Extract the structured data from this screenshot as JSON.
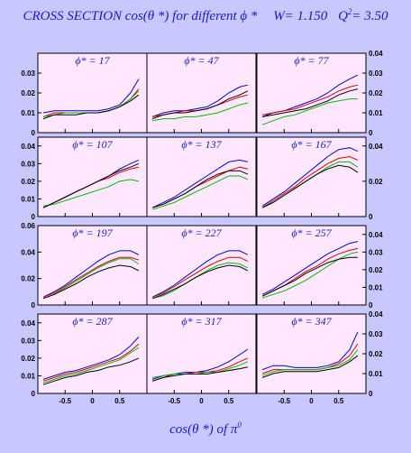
{
  "header": {
    "title": "CROSS SECTION  cos(θ *)   for different  ϕ *",
    "w_text": "W= 1.150",
    "q2_prefix": "Q",
    "q2_sup": "2",
    "q2_value": "= 3.50"
  },
  "colors": {
    "background": "#c8c8ff",
    "panel": "#ffe8ff",
    "text": "#1a1acc",
    "series": [
      "#0000dd",
      "#dd0000",
      "#00bb00",
      "#000000"
    ]
  },
  "chart_data": {
    "type": "line",
    "xlabel_main": "cos(θ *)  of  π",
    "xlabel_sup": "0",
    "layout": "4x3 grid",
    "xlim": [
      -1,
      1
    ],
    "xticks": [
      -0.5,
      0,
      0.5
    ],
    "xtick_labels": [
      "-0.5",
      "0",
      "0.5"
    ],
    "x": [
      -0.9,
      -0.7,
      -0.5,
      -0.3,
      -0.1,
      0.1,
      0.3,
      0.5,
      0.7,
      0.85
    ],
    "panels": [
      {
        "label": "ϕ* = 17",
        "ylim": [
          0,
          0.04
        ],
        "yticks": [
          0,
          0.01,
          0.02,
          0.03
        ],
        "ytick_labels": [
          "0",
          "0.01",
          "0.02",
          "0.03"
        ],
        "yaxis": "left",
        "series": [
          {
            "values": [
              0.01,
              0.011,
              0.011,
              0.011,
              0.011,
              0.011,
              0.012,
              0.014,
              0.02,
              0.027
            ]
          },
          {
            "values": [
              0.008,
              0.01,
              0.01,
              0.01,
              0.01,
              0.01,
              0.011,
              0.013,
              0.017,
              0.022
            ]
          },
          {
            "values": [
              0.008,
              0.009,
              0.01,
              0.01,
              0.01,
              0.01,
              0.011,
              0.013,
              0.017,
              0.021
            ]
          },
          {
            "values": [
              0.007,
              0.009,
              0.009,
              0.009,
              0.01,
              0.01,
              0.011,
              0.013,
              0.016,
              0.019
            ]
          }
        ]
      },
      {
        "label": "ϕ* = 47",
        "ylim": [
          0,
          0.04
        ],
        "yticks": [],
        "ytick_labels": [],
        "yaxis": "none",
        "series": [
          {
            "values": [
              0.008,
              0.01,
              0.011,
              0.011,
              0.012,
              0.013,
              0.016,
              0.02,
              0.023,
              0.024
            ]
          },
          {
            "values": [
              0.008,
              0.009,
              0.01,
              0.011,
              0.011,
              0.012,
              0.014,
              0.016,
              0.018,
              0.019
            ]
          },
          {
            "values": [
              0.006,
              0.007,
              0.007,
              0.008,
              0.008,
              0.009,
              0.01,
              0.012,
              0.014,
              0.015
            ]
          },
          {
            "values": [
              0.007,
              0.009,
              0.01,
              0.01,
              0.011,
              0.012,
              0.014,
              0.017,
              0.019,
              0.021
            ]
          }
        ]
      },
      {
        "label": "ϕ* = 77",
        "ylim": [
          0,
          0.04
        ],
        "yticks": [
          0,
          0.01,
          0.02,
          0.03,
          0.04
        ],
        "ytick_labels": [
          "0",
          "0.01",
          "0.02",
          "0.03",
          "0.04"
        ],
        "yaxis": "right",
        "series": [
          {
            "values": [
              0.008,
              0.01,
              0.011,
              0.013,
              0.015,
              0.017,
              0.02,
              0.024,
              0.027,
              0.029
            ]
          },
          {
            "values": [
              0.009,
              0.01,
              0.011,
              0.012,
              0.014,
              0.016,
              0.018,
              0.021,
              0.023,
              0.024
            ]
          },
          {
            "values": [
              0.004,
              0.006,
              0.008,
              0.009,
              0.011,
              0.013,
              0.015,
              0.016,
              0.017,
              0.017
            ]
          },
          {
            "values": [
              0.008,
              0.009,
              0.01,
              0.011,
              0.012,
              0.014,
              0.016,
              0.019,
              0.021,
              0.022
            ]
          }
        ]
      },
      {
        "label": "ϕ* = 107",
        "ylim": [
          0,
          0.045
        ],
        "yticks": [
          0,
          0.01,
          0.02,
          0.03,
          0.04
        ],
        "ytick_labels": [
          "0",
          "0.01",
          "0.02",
          "0.03",
          "0.04"
        ],
        "yaxis": "left",
        "series": [
          {
            "values": [
              0.005,
              0.008,
              0.011,
              0.014,
              0.017,
              0.02,
              0.023,
              0.027,
              0.03,
              0.032
            ]
          },
          {
            "values": [
              0.005,
              0.008,
              0.011,
              0.014,
              0.017,
              0.02,
              0.022,
              0.025,
              0.027,
              0.028
            ]
          },
          {
            "values": [
              0.006,
              0.007,
              0.009,
              0.011,
              0.013,
              0.015,
              0.017,
              0.02,
              0.021,
              0.02
            ]
          },
          {
            "values": [
              0.005,
              0.008,
              0.011,
              0.014,
              0.017,
              0.02,
              0.023,
              0.026,
              0.028,
              0.03
            ]
          }
        ]
      },
      {
        "label": "ϕ* = 137",
        "ylim": [
          0,
          0.045
        ],
        "yticks": [],
        "ytick_labels": [],
        "yaxis": "none",
        "series": [
          {
            "values": [
              0.005,
              0.008,
              0.011,
              0.015,
              0.019,
              0.023,
              0.027,
              0.031,
              0.032,
              0.031
            ]
          },
          {
            "values": [
              0.005,
              0.007,
              0.01,
              0.013,
              0.017,
              0.02,
              0.023,
              0.026,
              0.028,
              0.027
            ]
          },
          {
            "values": [
              0.004,
              0.006,
              0.008,
              0.011,
              0.014,
              0.017,
              0.02,
              0.023,
              0.023,
              0.021
            ]
          },
          {
            "values": [
              0.005,
              0.007,
              0.01,
              0.013,
              0.017,
              0.021,
              0.024,
              0.026,
              0.026,
              0.024
            ]
          }
        ]
      },
      {
        "label": "ϕ* = 167",
        "ylim": [
          0,
          0.045
        ],
        "yticks": [
          0,
          0.02,
          0.04
        ],
        "ytick_labels": [
          "0",
          "0.02",
          "0.04"
        ],
        "yaxis": "right",
        "series": [
          {
            "values": [
              0.006,
              0.01,
              0.014,
              0.019,
              0.024,
              0.029,
              0.034,
              0.038,
              0.039,
              0.037
            ]
          },
          {
            "values": [
              0.005,
              0.009,
              0.013,
              0.017,
              0.022,
              0.026,
              0.03,
              0.033,
              0.034,
              0.032
            ]
          },
          {
            "values": [
              0.005,
              0.008,
              0.012,
              0.016,
              0.02,
              0.024,
              0.028,
              0.031,
              0.031,
              0.028
            ]
          },
          {
            "values": [
              0.005,
              0.008,
              0.012,
              0.016,
              0.02,
              0.024,
              0.027,
              0.029,
              0.028,
              0.025
            ]
          }
        ]
      },
      {
        "label": "ϕ* = 197",
        "ylim": [
          0,
          0.06
        ],
        "yticks": [
          0,
          0.02,
          0.04,
          0.06
        ],
        "ytick_labels": [
          "0",
          "0.02",
          "0.04",
          "0.06"
        ],
        "yaxis": "left",
        "series": [
          {
            "values": [
              0.006,
              0.01,
              0.015,
              0.021,
              0.027,
              0.033,
              0.038,
              0.041,
              0.041,
              0.038
            ]
          },
          {
            "values": [
              0.006,
              0.009,
              0.014,
              0.019,
              0.024,
              0.029,
              0.033,
              0.036,
              0.036,
              0.034
            ]
          },
          {
            "values": [
              0.005,
              0.008,
              0.013,
              0.018,
              0.023,
              0.028,
              0.032,
              0.035,
              0.035,
              0.031
            ]
          },
          {
            "values": [
              0.005,
              0.008,
              0.012,
              0.016,
              0.021,
              0.025,
              0.028,
              0.03,
              0.029,
              0.026
            ]
          }
        ]
      },
      {
        "label": "ϕ* = 227",
        "ylim": [
          0,
          0.06
        ],
        "yticks": [],
        "ytick_labels": [],
        "yaxis": "none",
        "series": [
          {
            "values": [
              0.006,
              0.01,
              0.015,
              0.021,
              0.027,
              0.033,
              0.038,
              0.041,
              0.041,
              0.038
            ]
          },
          {
            "values": [
              0.006,
              0.009,
              0.014,
              0.019,
              0.024,
              0.029,
              0.033,
              0.036,
              0.036,
              0.033
            ]
          },
          {
            "values": [
              0.005,
              0.007,
              0.011,
              0.016,
              0.021,
              0.026,
              0.03,
              0.032,
              0.031,
              0.028
            ]
          },
          {
            "values": [
              0.005,
              0.008,
              0.012,
              0.016,
              0.021,
              0.025,
              0.028,
              0.03,
              0.029,
              0.026
            ]
          }
        ]
      },
      {
        "label": "ϕ* = 257",
        "ylim": [
          0,
          0.045
        ],
        "yticks": [
          0,
          0.01,
          0.02,
          0.03,
          0.04
        ],
        "ytick_labels": [
          "0",
          "0.01",
          "0.02",
          "0.03",
          "0.04"
        ],
        "yaxis": "right",
        "series": [
          {
            "values": [
              0.006,
              0.009,
              0.013,
              0.017,
              0.021,
              0.025,
              0.029,
              0.032,
              0.035,
              0.036
            ]
          },
          {
            "values": [
              0.005,
              0.008,
              0.011,
              0.015,
              0.019,
              0.022,
              0.026,
              0.029,
              0.031,
              0.032
            ]
          },
          {
            "values": [
              0.004,
              0.006,
              0.008,
              0.011,
              0.014,
              0.018,
              0.022,
              0.026,
              0.029,
              0.03
            ]
          },
          {
            "values": [
              0.005,
              0.008,
              0.011,
              0.014,
              0.018,
              0.021,
              0.024,
              0.026,
              0.027,
              0.027
            ]
          }
        ]
      },
      {
        "label": "ϕ* = 287",
        "ylim": [
          0,
          0.045
        ],
        "yticks": [
          0,
          0.01,
          0.02,
          0.03,
          0.04
        ],
        "ytick_labels": [
          "0",
          "0.01",
          "0.02",
          "0.03",
          "0.04"
        ],
        "yaxis": "left",
        "series": [
          {
            "values": [
              0.008,
              0.01,
              0.012,
              0.013,
              0.015,
              0.017,
              0.019,
              0.022,
              0.027,
              0.032
            ]
          },
          {
            "values": [
              0.007,
              0.009,
              0.011,
              0.012,
              0.014,
              0.016,
              0.018,
              0.02,
              0.024,
              0.028
            ]
          },
          {
            "values": [
              0.006,
              0.008,
              0.01,
              0.011,
              0.013,
              0.015,
              0.017,
              0.019,
              0.023,
              0.026
            ]
          },
          {
            "values": [
              0.005,
              0.007,
              0.009,
              0.01,
              0.012,
              0.013,
              0.015,
              0.016,
              0.018,
              0.02
            ]
          }
        ]
      },
      {
        "label": "ϕ* = 317",
        "ylim": [
          0,
          0.045
        ],
        "yticks": [],
        "ytick_labels": [],
        "yaxis": "none",
        "series": [
          {
            "values": [
              0.008,
              0.01,
              0.011,
              0.012,
              0.012,
              0.013,
              0.015,
              0.018,
              0.022,
              0.025
            ]
          },
          {
            "values": [
              0.007,
              0.009,
              0.011,
              0.011,
              0.012,
              0.012,
              0.013,
              0.015,
              0.018,
              0.02
            ]
          },
          {
            "values": [
              0.009,
              0.01,
              0.011,
              0.011,
              0.011,
              0.012,
              0.012,
              0.014,
              0.016,
              0.018
            ]
          },
          {
            "values": [
              0.007,
              0.009,
              0.01,
              0.011,
              0.011,
              0.011,
              0.012,
              0.013,
              0.014,
              0.015
            ]
          }
        ]
      },
      {
        "label": "ϕ* = 347",
        "ylim": [
          0,
          0.04
        ],
        "yticks": [
          0,
          0.01,
          0.02,
          0.03,
          0.04
        ],
        "ytick_labels": [
          "0",
          "0.01",
          "0.02",
          "0.03",
          "0.04"
        ],
        "yaxis": "right",
        "series": [
          {
            "values": [
              0.012,
              0.014,
              0.014,
              0.013,
              0.013,
              0.013,
              0.014,
              0.016,
              0.022,
              0.031
            ]
          },
          {
            "values": [
              0.01,
              0.012,
              0.012,
              0.012,
              0.012,
              0.012,
              0.013,
              0.015,
              0.019,
              0.025
            ]
          },
          {
            "values": [
              0.009,
              0.011,
              0.012,
              0.012,
              0.012,
              0.012,
              0.013,
              0.014,
              0.017,
              0.022
            ]
          },
          {
            "values": [
              0.008,
              0.01,
              0.011,
              0.011,
              0.011,
              0.011,
              0.012,
              0.013,
              0.016,
              0.019
            ]
          }
        ]
      }
    ]
  }
}
